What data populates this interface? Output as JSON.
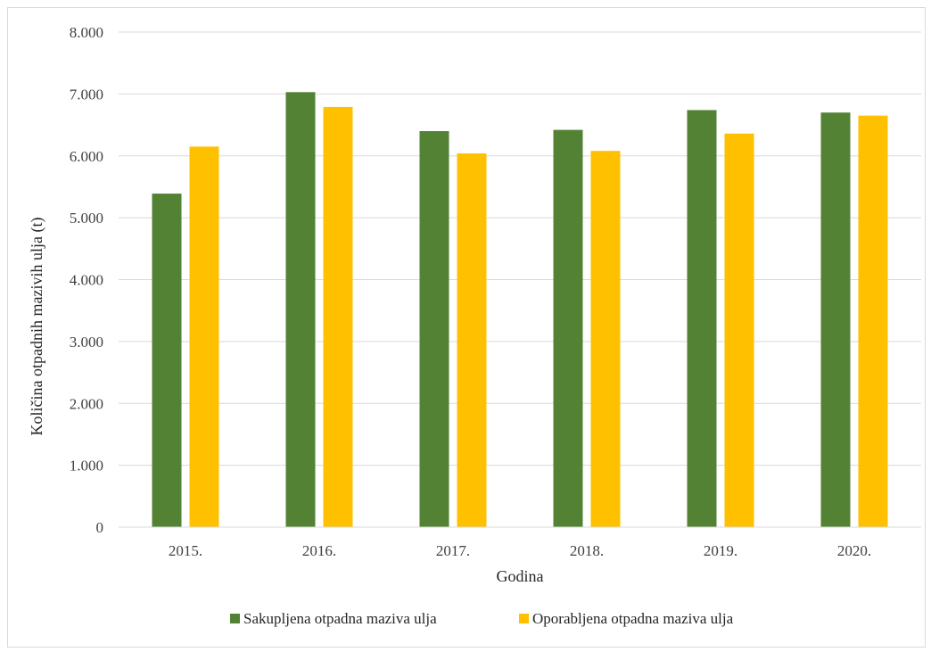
{
  "chart_data": {
    "type": "bar",
    "categories": [
      "2015.",
      "2016.",
      "2017.",
      "2018.",
      "2019.",
      "2020."
    ],
    "series": [
      {
        "name": "Sakupljena otpadna maziva ulja",
        "color": "#548235",
        "values": [
          5390,
          7030,
          6400,
          6420,
          6740,
          6700
        ]
      },
      {
        "name": "Oporabljena otpadna maziva ulja",
        "color": "#ffc000",
        "values": [
          6150,
          6790,
          6040,
          6080,
          6360,
          6650
        ]
      }
    ],
    "ylim": [
      0,
      8000
    ],
    "yticks": [
      "0",
      "1.000",
      "2.000",
      "3.000",
      "4.000",
      "5.000",
      "6.000",
      "7.000",
      "8.000"
    ],
    "xlabel": "Godina",
    "ylabel": "Količina otpadnih mazivih ulja (t)",
    "grid": "horizontal",
    "legend_position": "bottom"
  }
}
